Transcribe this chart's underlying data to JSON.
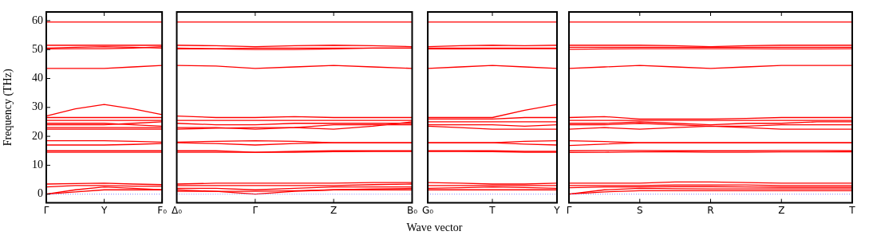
{
  "chart_data": [
    {
      "type": "line",
      "ylabel": "Frequency (THz)",
      "categories": [
        "Γ",
        null,
        "Y",
        null,
        "F₀"
      ],
      "ylim": [
        -3,
        63
      ],
      "yticks": [
        0,
        10,
        20,
        30,
        40,
        50,
        60
      ],
      "marker": "none",
      "line_style": "solid",
      "ref_lines": [
        {
          "axis": "y",
          "value": 0,
          "color": "#8080ff",
          "line_style": "dotted"
        }
      ],
      "series": [
        {
          "color": "#ff0000",
          "values": [
            59.5,
            59.5,
            59.5,
            59.5,
            59.5
          ]
        },
        {
          "color": "#ff0000",
          "values": [
            51.5,
            51.5,
            51.5,
            51.5,
            51.5
          ]
        },
        {
          "color": "#ff0000",
          "values": [
            50.5,
            50.8,
            51,
            50.8,
            50.5
          ]
        },
        {
          "color": "#ff0000",
          "values": [
            50.2,
            50.3,
            50.3,
            50.5,
            51
          ]
        },
        {
          "color": "#ff0000",
          "values": [
            43.5,
            43.5,
            43.5,
            44,
            44.5
          ]
        },
        {
          "color": "#ff0000",
          "values": [
            27,
            29.5,
            31,
            29.5,
            27.5
          ]
        },
        {
          "color": "#ff0000",
          "values": [
            26.5,
            26.5,
            26.5,
            26.5,
            26.5
          ]
        },
        {
          "color": "#ff0000",
          "values": [
            25.5,
            25.5,
            25.5,
            25.5,
            25.5
          ]
        },
        {
          "color": "#ff0000",
          "values": [
            24.5,
            24.5,
            24.5,
            24,
            23.5
          ]
        },
        {
          "color": "#ff0000",
          "values": [
            24,
            24,
            24,
            24.5,
            25
          ]
        },
        {
          "color": "#ff0000",
          "values": [
            23,
            23,
            23,
            23,
            23
          ]
        },
        {
          "color": "#ff0000",
          "values": [
            22.5,
            22.5,
            22.5,
            22.5,
            22.5
          ]
        },
        {
          "color": "#ff0000",
          "values": [
            18.5,
            18.5,
            18.5,
            18.3,
            18
          ]
        },
        {
          "color": "#ff0000",
          "values": [
            17,
            17,
            17,
            17.2,
            17.5
          ]
        },
        {
          "color": "#ff0000",
          "values": [
            15,
            15,
            15,
            15,
            15
          ]
        },
        {
          "color": "#ff0000",
          "values": [
            14.5,
            14.5,
            14.5,
            14.5,
            14.5
          ]
        },
        {
          "color": "#ff0000",
          "values": [
            3.5,
            3.7,
            3.8,
            3.5,
            3.3
          ]
        },
        {
          "color": "#ff0000",
          "values": [
            2.5,
            3,
            3,
            2.8,
            2.7
          ]
        },
        {
          "color": "#ff0000",
          "values": [
            0,
            1.5,
            2.5,
            2,
            1.5
          ]
        },
        {
          "color": "#ff0000",
          "values": [
            0,
            0.8,
            1.5,
            1.5,
            1.5
          ]
        }
      ]
    },
    {
      "type": "line",
      "categories": [
        "Δ₀",
        null,
        "Γ",
        null,
        "Z",
        null,
        "B₀"
      ],
      "ylim": [
        -3,
        63
      ],
      "yticks": [
        0,
        10,
        20,
        30,
        40,
        50,
        60
      ],
      "tick_labels": "x",
      "marker": "none",
      "line_style": "solid",
      "ref_lines": [
        {
          "axis": "y",
          "value": 0,
          "color": "#8080ff",
          "line_style": "dotted"
        }
      ],
      "series": [
        {
          "color": "#ff0000",
          "values": [
            59.5,
            59.5,
            59.5,
            59.5,
            59.5,
            59.5,
            59.5
          ]
        },
        {
          "color": "#ff0000",
          "values": [
            51.5,
            51.3,
            51,
            51.3,
            51.5,
            51.3,
            51
          ]
        },
        {
          "color": "#ff0000",
          "values": [
            50.5,
            50.3,
            50.5,
            50.5,
            50.5,
            50.5,
            50.5
          ]
        },
        {
          "color": "#ff0000",
          "values": [
            50.2,
            50.2,
            50,
            50,
            50.2,
            50.5,
            50.5
          ]
        },
        {
          "color": "#ff0000",
          "values": [
            44.5,
            44.3,
            43.5,
            44,
            44.5,
            44,
            43.5
          ]
        },
        {
          "color": "#ff0000",
          "values": [
            27,
            26.5,
            26.5,
            26.8,
            26.5,
            26.5,
            26.5
          ]
        },
        {
          "color": "#ff0000",
          "values": [
            25.5,
            25.5,
            25.5,
            25.5,
            25.5,
            25.5,
            25.5
          ]
        },
        {
          "color": "#ff0000",
          "values": [
            24.5,
            24,
            24,
            24.5,
            24.5,
            24.5,
            24.5
          ]
        },
        {
          "color": "#ff0000",
          "values": [
            23,
            23,
            22.5,
            23,
            24,
            24,
            24
          ]
        },
        {
          "color": "#ff0000",
          "values": [
            22.5,
            22.8,
            23,
            23,
            22.5,
            23.5,
            25
          ]
        },
        {
          "color": "#ff0000",
          "values": [
            18,
            18.3,
            18.5,
            18.3,
            17.8,
            17.8,
            17.8
          ]
        },
        {
          "color": "#ff0000",
          "values": [
            17.8,
            17.5,
            17,
            17.5,
            17.8,
            17.8,
            17.8
          ]
        },
        {
          "color": "#ff0000",
          "values": [
            15,
            15,
            14.5,
            14.8,
            15,
            15,
            15
          ]
        },
        {
          "color": "#ff0000",
          "values": [
            14.5,
            14.5,
            14.5,
            14.5,
            14.7,
            14.8,
            14.8
          ]
        },
        {
          "color": "#ff0000",
          "values": [
            3.5,
            3.8,
            3.8,
            3.8,
            3.8,
            4,
            4
          ]
        },
        {
          "color": "#ff0000",
          "values": [
            3,
            3,
            3,
            3,
            3,
            3.3,
            3.5
          ]
        },
        {
          "color": "#ff0000",
          "values": [
            2,
            2,
            1.5,
            2,
            2.5,
            2.5,
            2.5
          ]
        },
        {
          "color": "#ff0000",
          "values": [
            1.5,
            1,
            0,
            1,
            1.5,
            1.8,
            2
          ]
        },
        {
          "color": "#ff0000",
          "values": [
            1,
            1,
            1,
            1.2,
            1.5,
            1.5,
            1.5
          ]
        }
      ]
    },
    {
      "type": "line",
      "xlabel": "Wave vector",
      "categories": [
        "G₀",
        null,
        "T",
        null,
        "Y"
      ],
      "ylim": [
        -3,
        63
      ],
      "yticks": [
        0,
        10,
        20,
        30,
        40,
        50,
        60
      ],
      "tick_labels": "x",
      "marker": "none",
      "line_style": "solid",
      "ref_lines": [
        {
          "axis": "y",
          "value": 0,
          "color": "#8080ff",
          "line_style": "dotted"
        }
      ],
      "series": [
        {
          "color": "#ff0000",
          "values": [
            59.5,
            59.5,
            59.5,
            59.5,
            59.5
          ]
        },
        {
          "color": "#ff0000",
          "values": [
            51,
            51.3,
            51.5,
            51.3,
            51.5
          ]
        },
        {
          "color": "#ff0000",
          "values": [
            50.5,
            50.5,
            50.5,
            50.5,
            50.5
          ]
        },
        {
          "color": "#ff0000",
          "values": [
            50.2,
            50.2,
            50.3,
            50.3,
            50.3
          ]
        },
        {
          "color": "#ff0000",
          "values": [
            43.5,
            44,
            44.5,
            44,
            43.5
          ]
        },
        {
          "color": "#ff0000",
          "values": [
            26.5,
            26.5,
            26.5,
            29,
            31
          ]
        },
        {
          "color": "#ff0000",
          "values": [
            26,
            26,
            26,
            26.5,
            26.5
          ]
        },
        {
          "color": "#ff0000",
          "values": [
            25,
            25,
            25,
            25,
            25
          ]
        },
        {
          "color": "#ff0000",
          "values": [
            24,
            24,
            24,
            23.5,
            24
          ]
        },
        {
          "color": "#ff0000",
          "values": [
            23.5,
            23,
            22.5,
            22.5,
            22.5
          ]
        },
        {
          "color": "#ff0000",
          "values": [
            17.8,
            17.8,
            17.8,
            18.3,
            18.5
          ]
        },
        {
          "color": "#ff0000",
          "values": [
            17.8,
            17.8,
            17.8,
            17.3,
            17
          ]
        },
        {
          "color": "#ff0000",
          "values": [
            15,
            15,
            15,
            14.8,
            14.8
          ]
        },
        {
          "color": "#ff0000",
          "values": [
            14.8,
            14.8,
            14.7,
            14.5,
            14.5
          ]
        },
        {
          "color": "#ff0000",
          "values": [
            4,
            3.8,
            3.5,
            3.5,
            3.8
          ]
        },
        {
          "color": "#ff0000",
          "values": [
            3,
            3,
            3,
            3,
            3
          ]
        },
        {
          "color": "#ff0000",
          "values": [
            2,
            2.2,
            2.5,
            2.3,
            2
          ]
        },
        {
          "color": "#ff0000",
          "values": [
            1.5,
            1.5,
            1.5,
            1.5,
            1.5
          ]
        }
      ]
    },
    {
      "type": "line",
      "categories": [
        "Γ",
        null,
        "S",
        null,
        "R",
        null,
        "Z",
        null,
        "T"
      ],
      "ylim": [
        -3,
        63
      ],
      "yticks": [
        0,
        10,
        20,
        30,
        40,
        50,
        60
      ],
      "tick_labels": "x",
      "marker": "none",
      "line_style": "solid",
      "ref_lines": [
        {
          "axis": "y",
          "value": 0,
          "color": "#8080ff",
          "line_style": "dotted"
        }
      ],
      "series": [
        {
          "color": "#ff0000",
          "values": [
            59.5,
            59.5,
            59.5,
            59.5,
            59.5,
            59.5,
            59.5,
            59.5,
            59.5
          ]
        },
        {
          "color": "#ff0000",
          "values": [
            51.5,
            51.5,
            51.5,
            51.3,
            51,
            51.3,
            51.5,
            51.5,
            51.5
          ]
        },
        {
          "color": "#ff0000",
          "values": [
            50.8,
            50.8,
            50.8,
            50.8,
            50.8,
            50.8,
            50.8,
            50.8,
            50.8
          ]
        },
        {
          "color": "#ff0000",
          "values": [
            50.1,
            50.2,
            50.3,
            50.3,
            50.3,
            50.3,
            50.2,
            50.2,
            50.3
          ]
        },
        {
          "color": "#ff0000",
          "values": [
            43.5,
            44,
            44.5,
            44,
            43.5,
            44,
            44.5,
            44.5,
            44.5
          ]
        },
        {
          "color": "#ff0000",
          "values": [
            26.5,
            26.8,
            26,
            26,
            26,
            26.2,
            26.5,
            26.5,
            26.5
          ]
        },
        {
          "color": "#ff0000",
          "values": [
            25.5,
            25.5,
            25.5,
            25.5,
            25.5,
            25.5,
            25.5,
            25.5,
            25.5
          ]
        },
        {
          "color": "#ff0000",
          "values": [
            24.5,
            24.5,
            25,
            24.5,
            24,
            24.5,
            24.5,
            25,
            25
          ]
        },
        {
          "color": "#ff0000",
          "values": [
            24,
            24,
            24.5,
            24,
            23.5,
            23.5,
            24,
            24,
            24
          ]
        },
        {
          "color": "#ff0000",
          "values": [
            22.5,
            23,
            22.5,
            23,
            23.5,
            23,
            22.5,
            22.5,
            22.5
          ]
        },
        {
          "color": "#ff0000",
          "values": [
            18.5,
            18.2,
            17.8,
            17.8,
            17.8,
            17.8,
            17.8,
            17.8,
            17.8
          ]
        },
        {
          "color": "#ff0000",
          "values": [
            16.8,
            17.3,
            17.8,
            17.8,
            17.8,
            17.8,
            17.8,
            17.8,
            17.8
          ]
        },
        {
          "color": "#ff0000",
          "values": [
            15,
            15.1,
            15.1,
            15,
            15,
            15,
            15.1,
            15.1,
            15
          ]
        },
        {
          "color": "#ff0000",
          "values": [
            14.4,
            14.5,
            14.6,
            14.6,
            14.5,
            14.5,
            14.6,
            14.6,
            14.6
          ]
        },
        {
          "color": "#ff0000",
          "values": [
            3.8,
            3.8,
            3.8,
            4.2,
            4.2,
            4,
            3.8,
            3.8,
            3.8
          ]
        },
        {
          "color": "#ff0000",
          "values": [
            3,
            3,
            3,
            3.2,
            3.2,
            3.2,
            3,
            3,
            3
          ]
        },
        {
          "color": "#ff0000",
          "values": [
            2.2,
            2.5,
            2.5,
            2.6,
            2.6,
            2.5,
            2.4,
            2.4,
            2.4
          ]
        },
        {
          "color": "#ff0000",
          "values": [
            0,
            1.5,
            2,
            1.9,
            1.8,
            1.8,
            1.8,
            1.8,
            1.8
          ]
        },
        {
          "color": "#ff0000",
          "values": [
            0,
            0.8,
            1.2,
            1.2,
            1.2,
            1.2,
            1.2,
            1.2,
            1.2
          ]
        }
      ]
    }
  ]
}
